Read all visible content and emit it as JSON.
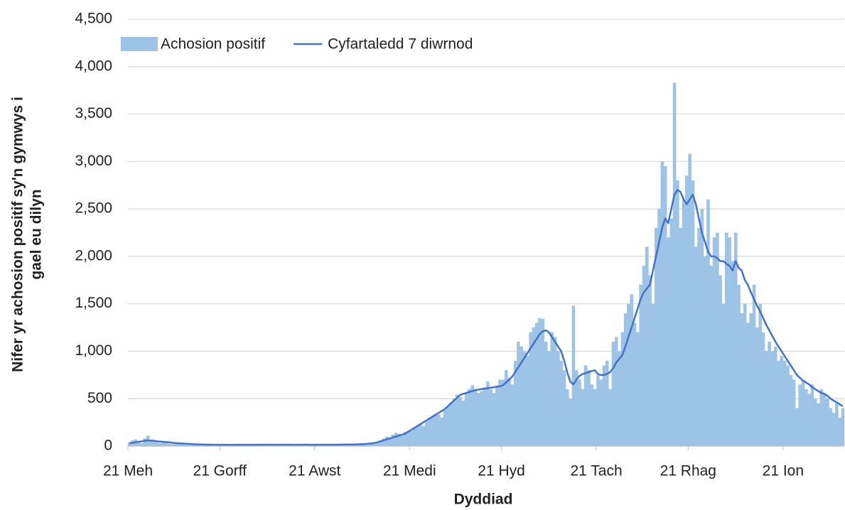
{
  "chart_data": {
    "type": "bar_line",
    "x_label": "Dyddiad",
    "y_label": [
      "Nifer yr achosion positif sy'n gymwys i",
      "gael eu dilyn"
    ],
    "legend_position": "top-left",
    "grid": true,
    "ylim": [
      0,
      4500
    ],
    "yticks": [
      0,
      500,
      {
        "value": 1000,
        "label": "1,000"
      },
      {
        "value": 1500,
        "label": "1,500"
      },
      {
        "value": 2000,
        "label": "2,000"
      },
      {
        "value": 2500,
        "label": "2,500"
      },
      {
        "value": 3000,
        "label": "3,000"
      },
      {
        "value": 3500,
        "label": "3,500"
      },
      {
        "value": 4000,
        "label": "4,000"
      },
      {
        "value": 4500,
        "label": "4,500"
      }
    ],
    "categories": [
      "21 Meh",
      null,
      null,
      null,
      null,
      null,
      null,
      null,
      null,
      null,
      null,
      null,
      null,
      null,
      null,
      null,
      null,
      null,
      null,
      null,
      null,
      null,
      null,
      null,
      null,
      null,
      null,
      null,
      null,
      null,
      "21 Gorff",
      null,
      null,
      null,
      null,
      null,
      null,
      null,
      null,
      null,
      null,
      null,
      null,
      null,
      null,
      null,
      null,
      null,
      null,
      null,
      null,
      null,
      null,
      null,
      null,
      null,
      null,
      null,
      null,
      null,
      null,
      "21 Awst",
      null,
      null,
      null,
      null,
      null,
      null,
      null,
      null,
      null,
      null,
      null,
      null,
      null,
      null,
      null,
      null,
      null,
      null,
      null,
      null,
      null,
      null,
      null,
      null,
      null,
      null,
      null,
      null,
      null,
      null,
      "21 Medi",
      null,
      null,
      null,
      null,
      null,
      null,
      null,
      null,
      null,
      null,
      null,
      null,
      null,
      null,
      null,
      null,
      null,
      null,
      null,
      null,
      null,
      null,
      null,
      null,
      null,
      null,
      null,
      null,
      null,
      "21 Hyd",
      null,
      null,
      null,
      null,
      null,
      null,
      null,
      null,
      null,
      null,
      null,
      null,
      null,
      null,
      null,
      null,
      null,
      null,
      null,
      null,
      null,
      null,
      null,
      null,
      null,
      null,
      null,
      null,
      null,
      null,
      "21 Tach",
      null,
      null,
      null,
      null,
      null,
      null,
      null,
      null,
      null,
      null,
      null,
      null,
      null,
      null,
      null,
      null,
      null,
      null,
      null,
      null,
      null,
      null,
      null,
      null,
      null,
      null,
      null,
      null,
      null,
      "21 Rhag",
      null,
      null,
      null,
      null,
      null,
      null,
      null,
      null,
      null,
      null,
      null,
      null,
      null,
      null,
      null,
      null,
      null,
      null,
      null,
      null,
      null,
      null,
      null,
      null,
      null,
      null,
      null,
      null,
      null,
      null,
      "21 Ion",
      null,
      null,
      null,
      null,
      null,
      null,
      null,
      null,
      null,
      null,
      null,
      null,
      null,
      null,
      null,
      null,
      null,
      null,
      null
    ],
    "series": [
      {
        "name": "Achosion positif",
        "kind": "bar",
        "color": "#9dc3e6",
        "values": [
          40,
          60,
          70,
          50,
          30,
          80,
          110,
          60,
          50,
          40,
          30,
          45,
          35,
          25,
          20,
          30,
          25,
          20,
          15,
          20,
          18,
          15,
          12,
          20,
          15,
          10,
          12,
          15,
          10,
          12,
          15,
          12,
          10,
          8,
          14,
          18,
          20,
          16,
          12,
          10,
          9,
          15,
          18,
          20,
          15,
          12,
          10,
          8,
          14,
          16,
          18,
          15,
          12,
          10,
          9,
          14,
          16,
          18,
          15,
          12,
          10,
          12,
          10,
          15,
          18,
          20,
          16,
          12,
          10,
          15,
          18,
          22,
          20,
          15,
          12,
          18,
          22,
          25,
          28,
          30,
          35,
          45,
          60,
          80,
          100,
          90,
          120,
          140,
          130,
          110,
          150,
          160,
          160,
          200,
          220,
          240,
          210,
          260,
          300,
          320,
          340,
          330,
          300,
          380,
          420,
          460,
          500,
          540,
          520,
          480,
          560,
          600,
          640,
          600,
          560,
          580,
          620,
          680,
          600,
          560,
          640,
          700,
          700,
          800,
          720,
          650,
          900,
          1100,
          1050,
          1000,
          950,
          1200,
          1250,
          1300,
          1350,
          1340,
          1100,
          1000,
          1200,
          1150,
          1000,
          900,
          800,
          600,
          500,
          1480,
          800,
          700,
          600,
          850,
          800,
          650,
          600,
          750,
          700,
          850,
          900,
          600,
          1100,
          1150,
          1000,
          1200,
          1400,
          1500,
          1600,
          1300,
          1200,
          1700,
          1900,
          2100,
          1800,
          1500,
          2300,
          2500,
          3000,
          2950,
          2200,
          2400,
          3830,
          2800,
          2300,
          2600,
          2850,
          3080,
          2800,
          2100,
          2300,
          2500,
          2000,
          2600,
          1900,
          2200,
          2250,
          1800,
          1500,
          2250,
          2200,
          1950,
          2250,
          1700,
          1400,
          1500,
          1300,
          1400,
          1700,
          1250,
          1500,
          1200,
          1000,
          1100,
          1000,
          1050,
          900,
          950,
          900,
          850,
          750,
          700,
          400,
          650,
          700,
          600,
          550,
          650,
          500,
          450,
          600,
          550,
          500,
          400,
          350,
          450,
          300,
          400
        ]
      },
      {
        "name": "Cyfartaledd 7 diwrnod",
        "kind": "line",
        "color": "#4472c4",
        "values": [
          30,
          35,
          40,
          45,
          50,
          55,
          60,
          58,
          55,
          50,
          48,
          45,
          42,
          40,
          35,
          32,
          30,
          28,
          25,
          24,
          22,
          20,
          19,
          18,
          17,
          16,
          15,
          15,
          14,
          14,
          14,
          14,
          13,
          13,
          13,
          14,
          14,
          14,
          14,
          14,
          14,
          14,
          14,
          15,
          15,
          15,
          15,
          14,
          14,
          14,
          15,
          15,
          15,
          14,
          14,
          14,
          14,
          15,
          15,
          14,
          14,
          14,
          14,
          14,
          15,
          15,
          15,
          15,
          15,
          16,
          16,
          17,
          17,
          17,
          18,
          19,
          20,
          22,
          25,
          28,
          33,
          40,
          50,
          60,
          70,
          80,
          90,
          100,
          110,
          120,
          130,
          150,
          170,
          190,
          210,
          230,
          250,
          270,
          290,
          310,
          330,
          350,
          370,
          390,
          420,
          450,
          480,
          510,
          540,
          550,
          560,
          570,
          580,
          590,
          595,
          600,
          605,
          610,
          615,
          620,
          625,
          630,
          640,
          670,
          700,
          730,
          780,
          830,
          880,
          930,
          980,
          1030,
          1080,
          1130,
          1180,
          1210,
          1220,
          1200,
          1150,
          1100,
          1050,
          1000,
          900,
          780,
          680,
          650,
          700,
          740,
          760,
          770,
          780,
          790,
          800,
          760,
          750,
          750,
          760,
          780,
          820,
          880,
          920,
          960,
          1050,
          1150,
          1250,
          1350,
          1450,
          1550,
          1620,
          1660,
          1700,
          1850,
          2000,
          2150,
          2300,
          2400,
          2350,
          2500,
          2650,
          2700,
          2680,
          2600,
          2550,
          2600,
          2650,
          2550,
          2400,
          2250,
          2150,
          2050,
          2000,
          2000,
          1980,
          1950,
          1950,
          1920,
          1900,
          1850,
          1950,
          1880,
          1850,
          1750,
          1700,
          1620,
          1550,
          1480,
          1420,
          1350,
          1280,
          1220,
          1160,
          1100,
          1050,
          1000,
          950,
          900,
          850,
          800,
          750,
          720,
          690,
          670,
          650,
          620,
          600,
          580,
          560,
          550,
          530,
          500,
          480,
          460,
          440,
          420
        ]
      }
    ]
  }
}
